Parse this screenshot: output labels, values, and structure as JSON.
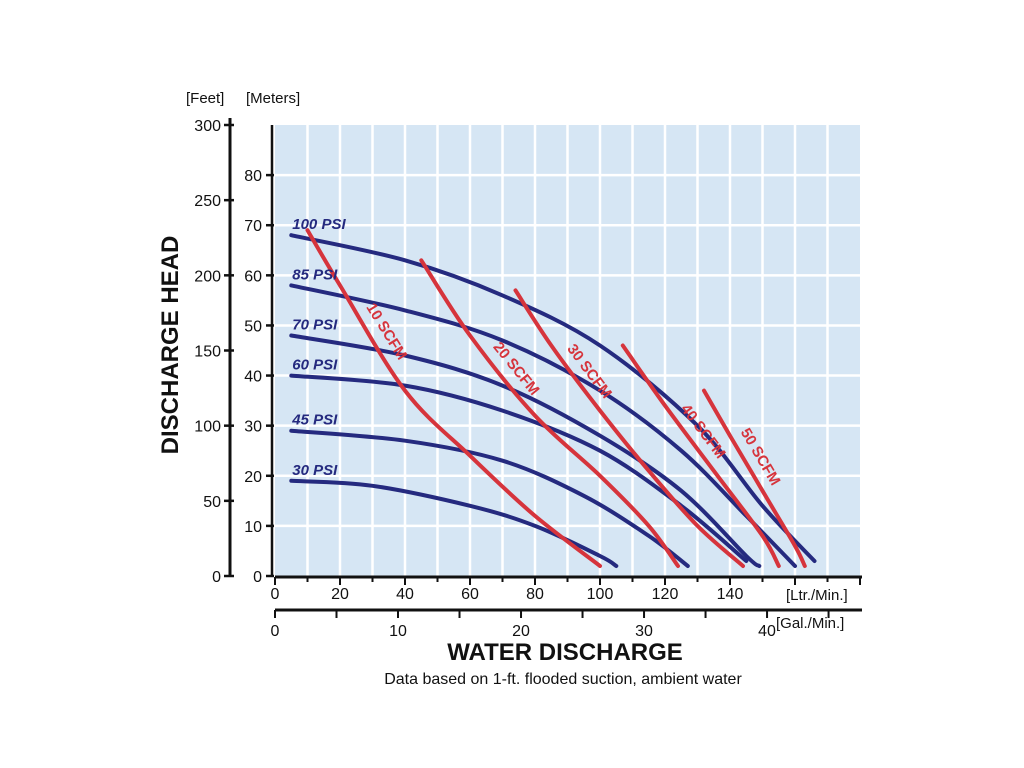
{
  "chart_data": {
    "type": "line",
    "title": "",
    "ylabel": "DISCHARGE HEAD",
    "xlabel": "WATER DISCHARGE",
    "note": "Data based on 1-ft. flooded suction, ambient water",
    "y_units": {
      "feet": "[Feet]",
      "meters": "[Meters]"
    },
    "x_units": {
      "lpm": "[Ltr./Min.]",
      "gpm": "[Gal./Min.]"
    },
    "xlim_lpm": [
      0,
      180
    ],
    "ylim_m": [
      0,
      90
    ],
    "ylim_ft": [
      0,
      300
    ],
    "xlim_gpm": [
      0,
      45
    ],
    "x_ticks_lpm": [
      "0",
      "20",
      "40",
      "60",
      "80",
      "100",
      "120",
      "140"
    ],
    "x_ticks_gpm": [
      "0",
      "10",
      "20",
      "30",
      "40"
    ],
    "y_ticks_m": [
      "0",
      "10",
      "20",
      "30",
      "40",
      "50",
      "60",
      "70",
      "80"
    ],
    "y_ticks_ft": [
      "0",
      "50",
      "100",
      "150",
      "200",
      "250",
      "300"
    ],
    "grid": true,
    "background_color": "#d6e6f4",
    "grid_color": "#ffffff",
    "pressure_color": "#252a7f",
    "air_color": "#d6343c",
    "pressure_series": [
      {
        "name": "100 PSI",
        "points": [
          [
            5,
            68
          ],
          [
            40,
            63
          ],
          [
            70,
            56
          ],
          [
            100,
            46
          ],
          [
            130,
            30
          ],
          [
            150,
            14
          ],
          [
            166,
            3
          ]
        ]
      },
      {
        "name": "85 PSI",
        "points": [
          [
            5,
            58
          ],
          [
            40,
            53
          ],
          [
            70,
            47
          ],
          [
            100,
            37
          ],
          [
            125,
            25
          ],
          [
            145,
            12
          ],
          [
            160,
            2
          ]
        ]
      },
      {
        "name": "70 PSI",
        "points": [
          [
            5,
            48
          ],
          [
            40,
            44
          ],
          [
            70,
            38
          ],
          [
            100,
            28
          ],
          [
            125,
            17
          ],
          [
            145,
            4
          ],
          [
            149,
            2
          ]
        ]
      },
      {
        "name": "60 PSI",
        "points": [
          [
            5,
            40
          ],
          [
            40,
            38
          ],
          [
            70,
            33
          ],
          [
            100,
            25
          ],
          [
            125,
            14
          ],
          [
            145,
            3
          ]
        ]
      },
      {
        "name": "45 PSI",
        "points": [
          [
            5,
            29
          ],
          [
            40,
            27
          ],
          [
            70,
            23
          ],
          [
            95,
            16
          ],
          [
            115,
            8
          ],
          [
            127,
            2
          ]
        ]
      },
      {
        "name": "30 PSI",
        "points": [
          [
            5,
            19
          ],
          [
            30,
            18
          ],
          [
            60,
            14
          ],
          [
            80,
            10
          ],
          [
            100,
            4
          ],
          [
            105,
            2
          ]
        ]
      }
    ],
    "air_series": [
      {
        "name": "10 SCFM",
        "points": [
          [
            10,
            69
          ],
          [
            20,
            58
          ],
          [
            40,
            37
          ],
          [
            60,
            24
          ],
          [
            80,
            12
          ],
          [
            100,
            2
          ]
        ]
      },
      {
        "name": "20 SCFM",
        "points": [
          [
            45,
            63
          ],
          [
            60,
            48
          ],
          [
            80,
            32
          ],
          [
            100,
            20
          ],
          [
            115,
            10
          ],
          [
            124,
            2
          ]
        ]
      },
      {
        "name": "30 SCFM",
        "points": [
          [
            74,
            57
          ],
          [
            85,
            46
          ],
          [
            100,
            33
          ],
          [
            115,
            21
          ],
          [
            130,
            10
          ],
          [
            144,
            2
          ]
        ]
      },
      {
        "name": "40 SCFM",
        "points": [
          [
            107,
            46
          ],
          [
            120,
            34
          ],
          [
            135,
            21
          ],
          [
            150,
            8
          ],
          [
            155,
            2
          ]
        ]
      },
      {
        "name": "50 SCFM",
        "points": [
          [
            132,
            37
          ],
          [
            140,
            28
          ],
          [
            150,
            17
          ],
          [
            160,
            6
          ],
          [
            163,
            2
          ]
        ]
      }
    ]
  }
}
